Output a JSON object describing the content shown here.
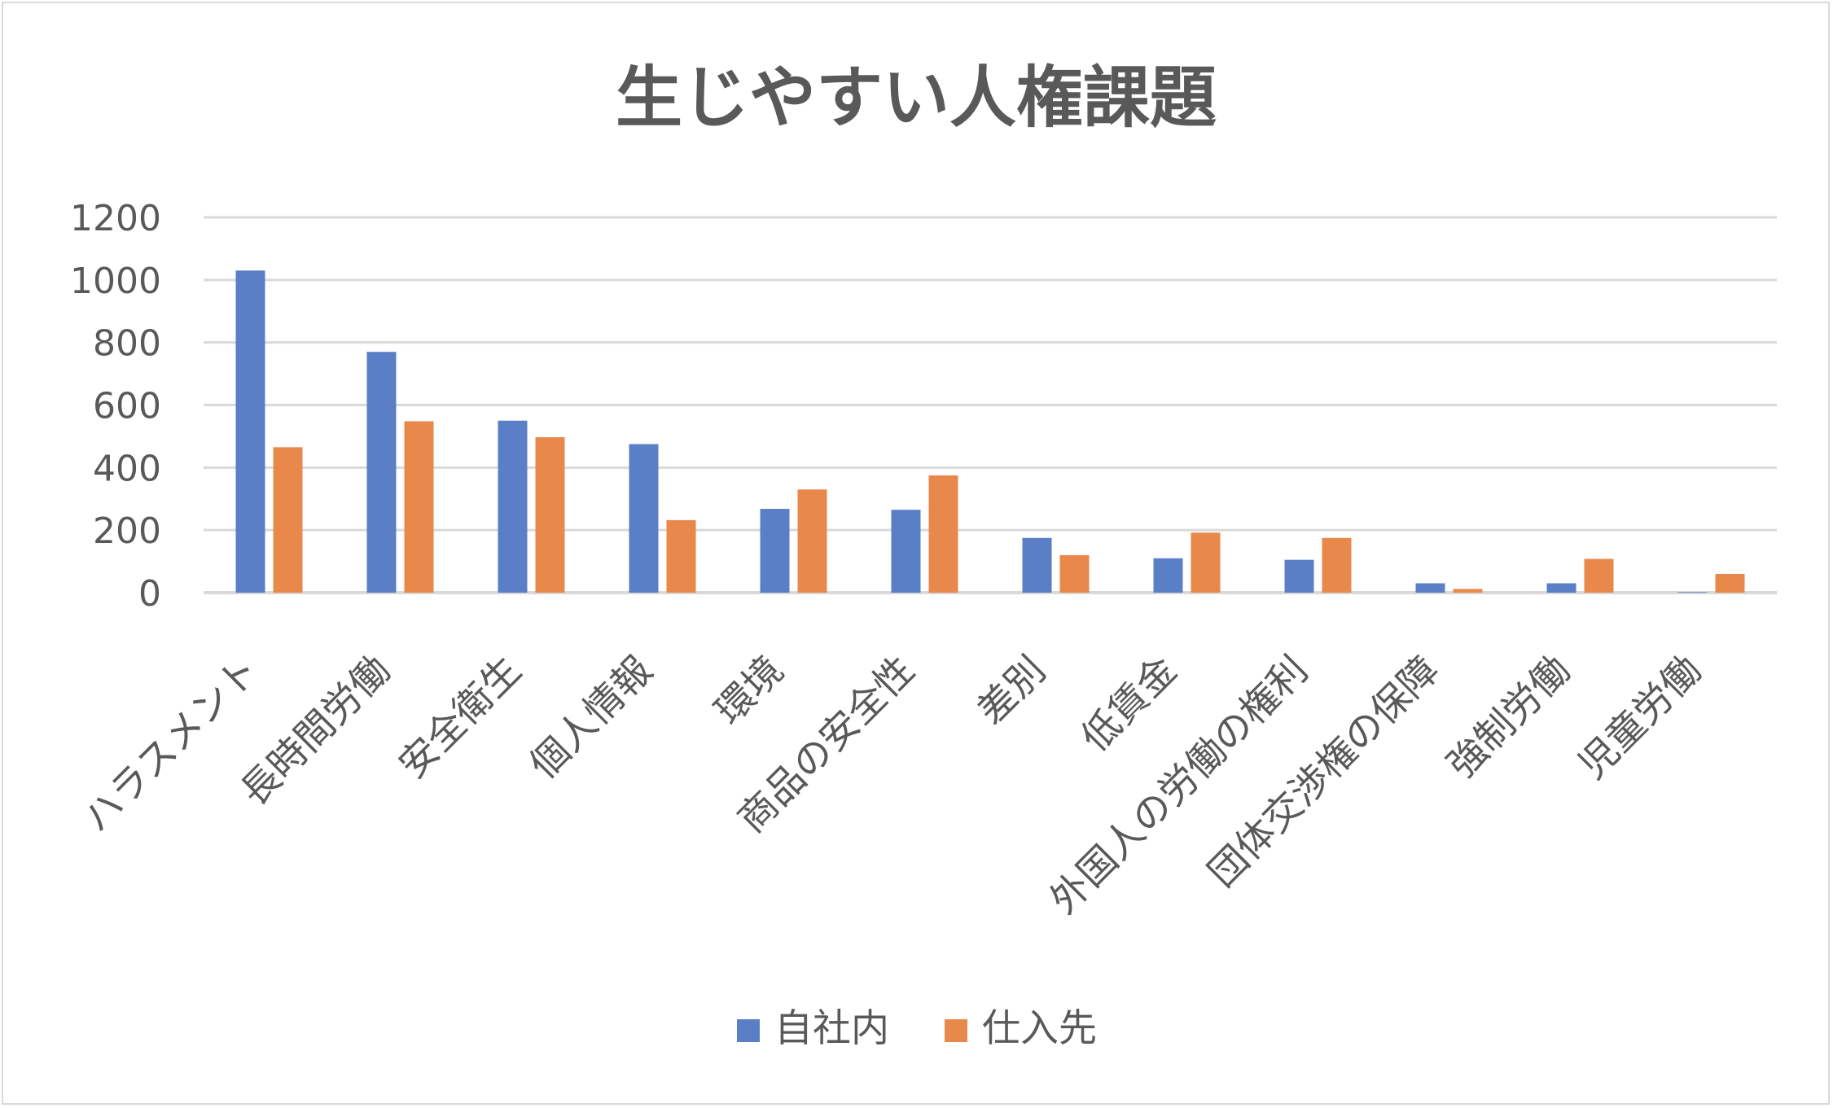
{
  "chart_data": {
    "type": "bar",
    "title": "生じやすい人権課題",
    "xlabel": "",
    "ylabel": "",
    "ylim": [
      0,
      1200
    ],
    "yticks": [
      "0",
      "200",
      "400",
      "600",
      "800",
      "1000",
      "1200"
    ],
    "grid": true,
    "legend_position": "bottom",
    "categories": [
      "ハラスメント",
      "長時間労働",
      "安全衛生",
      "個人情報",
      "環境",
      "商品の安全性",
      "差別",
      "低賃金",
      "外国人の労働の権利",
      "団体交渉権の保障",
      "強制労働",
      "児童労働"
    ],
    "series": [
      {
        "name": "自社内",
        "color": "#5b7fc6",
        "values": [
          1030,
          770,
          550,
          475,
          268,
          265,
          175,
          110,
          105,
          30,
          30,
          2
        ]
      },
      {
        "name": "仕入先",
        "color": "#e8884a",
        "values": [
          465,
          548,
          497,
          232,
          330,
          375,
          120,
          192,
          175,
          12,
          108,
          60
        ]
      }
    ]
  }
}
